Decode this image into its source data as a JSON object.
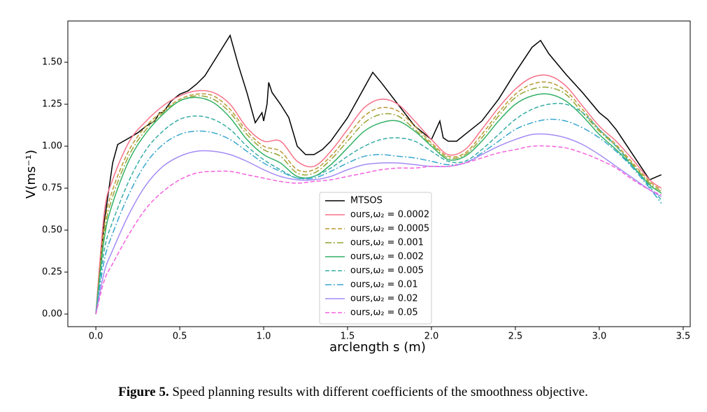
{
  "chart_data": {
    "type": "line",
    "xlabel": "arclength s (m)",
    "ylabel": "V(ms⁻¹)",
    "caption_label": "Figure 5.",
    "caption_text": "Speed planning results with different coefficients of the smoothness objective.",
    "xlim": [
      -0.167,
      3.542
    ],
    "ylim": [
      -0.075,
      1.746
    ],
    "xticks": [
      {
        "value": 0,
        "label": "0.0"
      },
      0.5,
      {
        "value": 1,
        "label": "1.0"
      },
      1.5,
      {
        "value": 2,
        "label": "2.0"
      },
      2.5,
      {
        "value": 3,
        "label": "3.0"
      },
      3.5
    ],
    "yticks": [
      {
        "value": 0,
        "label": "0.00"
      },
      0.25,
      {
        "value": 0.5,
        "label": "0.50"
      },
      0.75,
      {
        "value": 1,
        "label": "1.00"
      },
      1.25,
      {
        "value": 1.5,
        "label": "1.50"
      }
    ],
    "grid": false,
    "legend": "lower center",
    "series": [
      {
        "name": "MTSOS",
        "color": "#000000",
        "dash": "solid",
        "x": [
          0,
          0.05,
          0.1,
          0.13,
          0.2,
          0.25,
          0.3,
          0.35,
          0.38,
          0.4,
          0.45,
          0.5,
          0.55,
          0.6,
          0.65,
          0.7,
          0.75,
          0.8,
          0.85,
          0.9,
          0.95,
          0.99,
          1.0,
          1.02,
          1.03,
          1.05,
          1.1,
          1.15,
          1.2,
          1.25,
          1.3,
          1.35,
          1.4,
          1.5,
          1.6,
          1.65,
          1.7,
          1.8,
          1.9,
          2.0,
          2.05,
          2.07,
          2.1,
          2.15,
          2.2,
          2.3,
          2.4,
          2.5,
          2.6,
          2.65,
          2.7,
          2.8,
          2.9,
          3.0,
          3.05,
          3.1,
          3.2,
          3.3,
          3.37
        ],
        "values": [
          0,
          0.55,
          0.9,
          1.01,
          1.05,
          1.08,
          1.12,
          1.15,
          1.2,
          1.2,
          1.27,
          1.31,
          1.33,
          1.37,
          1.42,
          1.5,
          1.58,
          1.66,
          1.48,
          1.32,
          1.14,
          1.2,
          1.15,
          1.25,
          1.38,
          1.32,
          1.25,
          1.17,
          1.0,
          0.95,
          0.95,
          0.98,
          1.03,
          1.17,
          1.35,
          1.44,
          1.38,
          1.25,
          1.12,
          1.04,
          1.15,
          1.05,
          1.03,
          1.03,
          1.07,
          1.15,
          1.28,
          1.44,
          1.59,
          1.63,
          1.55,
          1.43,
          1.32,
          1.2,
          1.16,
          1.1,
          0.95,
          0.8,
          0.83
        ]
      },
      {
        "name": "ours,ω₂ = 0.0002",
        "color": "#f77189",
        "dash": "solid",
        "x": [
          0,
          0.05,
          0.1,
          0.2,
          0.3,
          0.4,
          0.5,
          0.6,
          0.7,
          0.8,
          0.9,
          1.0,
          1.1,
          1.2,
          1.3,
          1.4,
          1.5,
          1.6,
          1.7,
          1.8,
          1.9,
          2.0,
          2.1,
          2.2,
          2.3,
          2.4,
          2.5,
          2.6,
          2.7,
          2.8,
          2.9,
          3.0,
          3.1,
          3.2,
          3.3,
          3.37
        ],
        "values": [
          0,
          0.6,
          0.8,
          1.03,
          1.15,
          1.24,
          1.3,
          1.33,
          1.32,
          1.25,
          1.11,
          1.03,
          1.03,
          0.91,
          0.88,
          0.97,
          1.1,
          1.23,
          1.28,
          1.25,
          1.15,
          1.04,
          0.95,
          0.98,
          1.1,
          1.23,
          1.34,
          1.41,
          1.42,
          1.36,
          1.24,
          1.12,
          1.03,
          0.92,
          0.8,
          0.75
        ]
      },
      {
        "name": "ours,ω₂ = 0.0005",
        "color": "#bb9832",
        "dash": "dashed",
        "x": [
          0,
          0.05,
          0.1,
          0.2,
          0.3,
          0.4,
          0.5,
          0.6,
          0.7,
          0.8,
          0.9,
          1.0,
          1.1,
          1.2,
          1.3,
          1.4,
          1.5,
          1.6,
          1.7,
          1.8,
          1.9,
          2.0,
          2.1,
          2.2,
          2.3,
          2.4,
          2.5,
          2.6,
          2.7,
          2.8,
          2.9,
          3.0,
          3.1,
          3.2,
          3.3,
          3.37
        ],
        "values": [
          0,
          0.52,
          0.74,
          0.98,
          1.12,
          1.21,
          1.28,
          1.31,
          1.3,
          1.22,
          1.09,
          1.0,
          0.97,
          0.86,
          0.86,
          0.94,
          1.06,
          1.18,
          1.23,
          1.21,
          1.12,
          1.02,
          0.94,
          0.96,
          1.07,
          1.2,
          1.31,
          1.37,
          1.38,
          1.33,
          1.22,
          1.1,
          1.01,
          0.9,
          0.79,
          0.74
        ]
      },
      {
        "name": "ours,ω₂ = 0.001",
        "color": "#97a431",
        "dash": "dashdot",
        "x": [
          0,
          0.05,
          0.1,
          0.2,
          0.3,
          0.4,
          0.5,
          0.6,
          0.7,
          0.8,
          0.9,
          1.0,
          1.1,
          1.2,
          1.3,
          1.4,
          1.5,
          1.6,
          1.7,
          1.8,
          1.9,
          2.0,
          2.1,
          2.2,
          2.3,
          2.4,
          2.5,
          2.6,
          2.7,
          2.8,
          2.9,
          3.0,
          3.1,
          3.2,
          3.3,
          3.37
        ],
        "values": [
          0,
          0.48,
          0.7,
          0.95,
          1.1,
          1.2,
          1.27,
          1.3,
          1.28,
          1.2,
          1.07,
          0.98,
          0.94,
          0.84,
          0.84,
          0.92,
          1.03,
          1.14,
          1.19,
          1.18,
          1.1,
          1.01,
          0.93,
          0.95,
          1.05,
          1.18,
          1.29,
          1.34,
          1.35,
          1.31,
          1.2,
          1.09,
          1.0,
          0.89,
          0.78,
          0.73
        ]
      },
      {
        "name": "ours,ω₂ = 0.002",
        "color": "#32b166",
        "dash": "solid",
        "x": [
          0,
          0.05,
          0.1,
          0.2,
          0.3,
          0.4,
          0.5,
          0.6,
          0.7,
          0.8,
          0.9,
          1.0,
          1.1,
          1.2,
          1.3,
          1.4,
          1.5,
          1.6,
          1.7,
          1.8,
          1.9,
          2.0,
          2.1,
          2.2,
          2.3,
          2.4,
          2.5,
          2.6,
          2.7,
          2.8,
          2.9,
          3.0,
          3.1,
          3.2,
          3.3,
          3.37
        ],
        "values": [
          0,
          0.45,
          0.66,
          0.92,
          1.08,
          1.19,
          1.27,
          1.29,
          1.26,
          1.17,
          1.04,
          0.95,
          0.9,
          0.82,
          0.82,
          0.89,
          0.99,
          1.09,
          1.14,
          1.15,
          1.09,
          1.0,
          0.92,
          0.94,
          1.03,
          1.15,
          1.25,
          1.3,
          1.31,
          1.27,
          1.18,
          1.07,
          0.98,
          0.88,
          0.77,
          0.72
        ]
      },
      {
        "name": "ours,ω₂ = 0.005",
        "color": "#36ada4",
        "dash": "dashed",
        "x": [
          0,
          0.05,
          0.1,
          0.2,
          0.3,
          0.4,
          0.5,
          0.6,
          0.7,
          0.8,
          0.9,
          1.0,
          1.1,
          1.2,
          1.3,
          1.4,
          1.5,
          1.6,
          1.7,
          1.8,
          1.9,
          2.0,
          2.1,
          2.2,
          2.3,
          2.4,
          2.5,
          2.6,
          2.7,
          2.8,
          2.9,
          3.0,
          3.1,
          3.2,
          3.3,
          3.37
        ],
        "values": [
          0,
          0.38,
          0.55,
          0.8,
          0.98,
          1.09,
          1.16,
          1.18,
          1.16,
          1.1,
          1.0,
          0.92,
          0.86,
          0.81,
          0.82,
          0.87,
          0.94,
          1.0,
          1.04,
          1.05,
          1.03,
          0.97,
          0.91,
          0.91,
          0.98,
          1.07,
          1.16,
          1.22,
          1.25,
          1.25,
          1.2,
          1.1,
          1.0,
          0.88,
          0.76,
          0.68
        ]
      },
      {
        "name": "ours,ω₂ = 0.01",
        "color": "#39a7d0",
        "dash": "dashdot",
        "x": [
          0,
          0.05,
          0.1,
          0.2,
          0.3,
          0.4,
          0.5,
          0.6,
          0.7,
          0.8,
          0.9,
          1.0,
          1.1,
          1.2,
          1.3,
          1.4,
          1.5,
          1.6,
          1.7,
          1.8,
          1.9,
          2.0,
          2.1,
          2.2,
          2.3,
          2.4,
          2.5,
          2.6,
          2.7,
          2.8,
          2.9,
          3.0,
          3.1,
          3.2,
          3.3,
          3.37
        ],
        "values": [
          0,
          0.32,
          0.48,
          0.72,
          0.9,
          1.01,
          1.07,
          1.09,
          1.08,
          1.04,
          0.97,
          0.9,
          0.85,
          0.81,
          0.81,
          0.85,
          0.9,
          0.94,
          0.95,
          0.94,
          0.93,
          0.91,
          0.89,
          0.9,
          0.96,
          1.03,
          1.1,
          1.14,
          1.16,
          1.15,
          1.11,
          1.05,
          0.97,
          0.87,
          0.75,
          0.66
        ]
      },
      {
        "name": "ours,ω₂ = 0.02",
        "color": "#a48cf4",
        "dash": "solid",
        "x": [
          0,
          0.05,
          0.1,
          0.2,
          0.3,
          0.4,
          0.5,
          0.6,
          0.7,
          0.8,
          0.9,
          1.0,
          1.1,
          1.2,
          1.3,
          1.4,
          1.5,
          1.6,
          1.7,
          1.8,
          1.9,
          2.0,
          2.1,
          2.2,
          2.3,
          2.4,
          2.5,
          2.6,
          2.7,
          2.8,
          2.9,
          3.0,
          3.1,
          3.2,
          3.3,
          3.37
        ],
        "values": [
          0,
          0.25,
          0.38,
          0.6,
          0.77,
          0.88,
          0.94,
          0.97,
          0.97,
          0.95,
          0.91,
          0.86,
          0.82,
          0.8,
          0.8,
          0.82,
          0.86,
          0.89,
          0.9,
          0.9,
          0.89,
          0.88,
          0.88,
          0.9,
          0.95,
          1.0,
          1.04,
          1.07,
          1.07,
          1.05,
          1.01,
          0.95,
          0.88,
          0.81,
          0.74,
          0.7
        ]
      },
      {
        "name": "ours,ω₂ = 0.05",
        "color": "#f561dd",
        "dash": "dashed",
        "x": [
          0,
          0.05,
          0.1,
          0.2,
          0.3,
          0.4,
          0.5,
          0.6,
          0.7,
          0.8,
          0.9,
          1.0,
          1.1,
          1.2,
          1.3,
          1.4,
          1.5,
          1.6,
          1.7,
          1.8,
          1.9,
          2.0,
          2.1,
          2.2,
          2.3,
          2.4,
          2.5,
          2.6,
          2.7,
          2.8,
          2.9,
          3.0,
          3.1,
          3.2,
          3.3,
          3.37
        ],
        "values": [
          0,
          0.2,
          0.3,
          0.48,
          0.63,
          0.73,
          0.8,
          0.84,
          0.85,
          0.85,
          0.83,
          0.81,
          0.79,
          0.78,
          0.79,
          0.8,
          0.82,
          0.84,
          0.86,
          0.87,
          0.87,
          0.88,
          0.88,
          0.9,
          0.93,
          0.96,
          0.98,
          1.0,
          1.0,
          0.99,
          0.96,
          0.92,
          0.87,
          0.8,
          0.74,
          0.71
        ]
      }
    ]
  }
}
